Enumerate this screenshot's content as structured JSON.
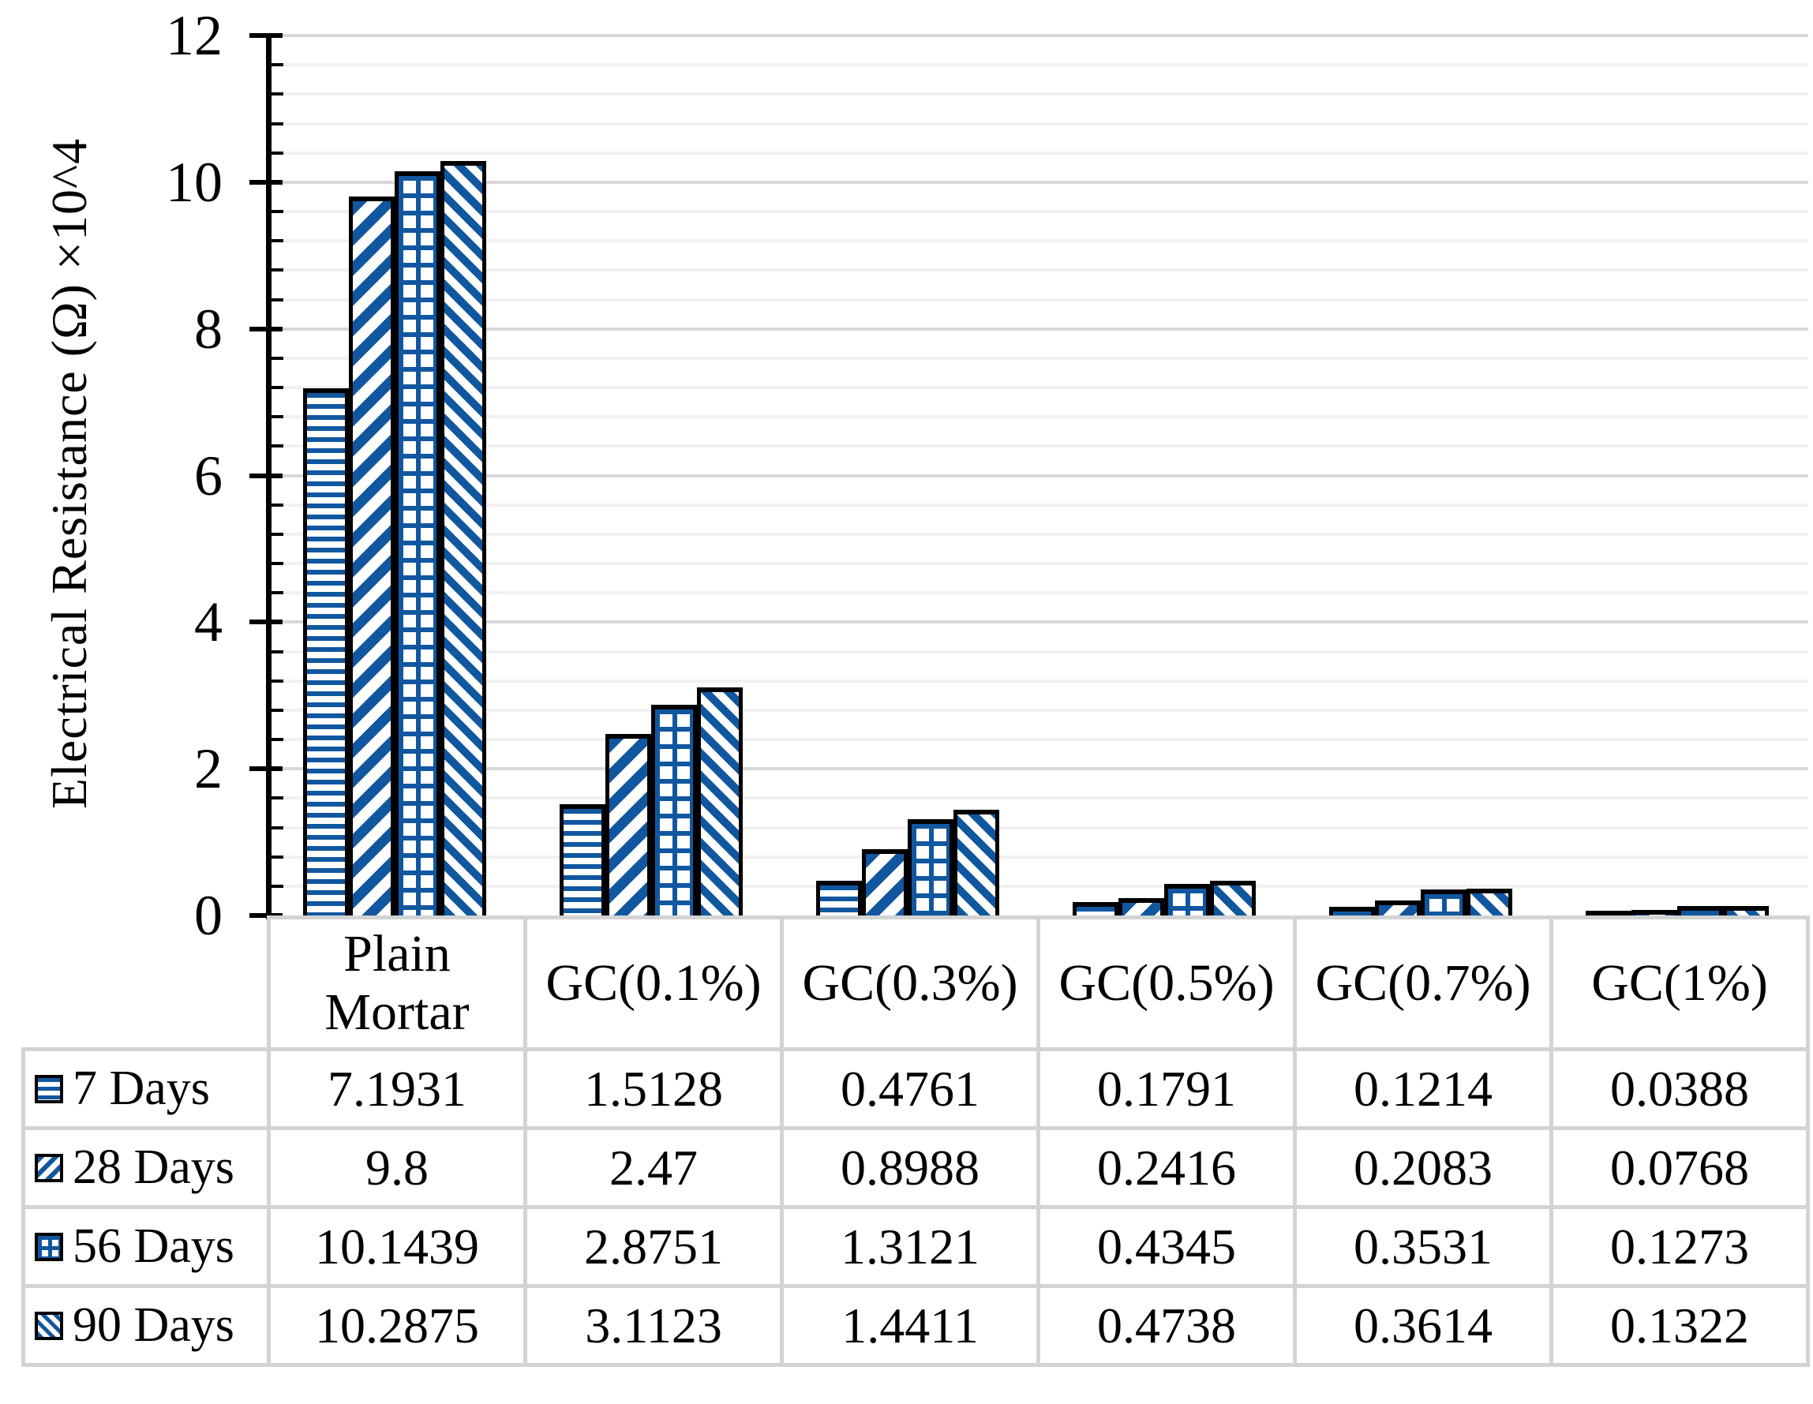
{
  "chart_data": {
    "type": "bar",
    "title": "",
    "ylabel": "Electrical Resistance (Ω) ×10^4",
    "xlabel": "",
    "categories": [
      "Plain Mortar",
      "GC(0.1%)",
      "GC(0.3%)",
      "GC(0.5%)",
      "GC(0.7%)",
      "GC(1%)"
    ],
    "series": [
      {
        "name": "7 Days",
        "pattern": "horizontal-lines",
        "values": [
          7.1931,
          1.5128,
          0.4761,
          0.1791,
          0.1214,
          0.0388
        ]
      },
      {
        "name": "28 Days",
        "pattern": "wide-upward-diagonal",
        "values": [
          9.8,
          2.47,
          0.8988,
          0.2416,
          0.2083,
          0.0768
        ]
      },
      {
        "name": "56 Days",
        "pattern": "grid",
        "values": [
          10.1439,
          2.8751,
          1.3121,
          0.4345,
          0.3531,
          0.1273
        ]
      },
      {
        "name": "90 Days",
        "pattern": "wide-downward-diagonal",
        "values": [
          10.2875,
          3.1123,
          1.4411,
          0.4738,
          0.3614,
          0.1322
        ]
      }
    ],
    "ylim": [
      0,
      12
    ],
    "y_major_unit": 2,
    "y_minor_unit": 0.4,
    "y_tick_labels": [
      "0",
      "2",
      "4",
      "6",
      "8",
      "10",
      "12"
    ],
    "grid": true,
    "legend_position": "data-table-left-column",
    "colors": {
      "bar_fill": "#1157A0",
      "bar_border": "#000000",
      "grid_major": "#D8D8D8",
      "grid_minor": "#F0F0F0",
      "table_border": "#D3D3D3",
      "text": "#000000"
    }
  },
  "table": {
    "corner_label": "",
    "column_headers": [
      "Plain Mortar",
      "GC(0.1%)",
      "GC(0.3%)",
      "GC(0.5%)",
      "GC(0.7%)",
      "GC(1%)"
    ],
    "row_headers": [
      "7 Days",
      "28 Days",
      "56 Days",
      "90 Days"
    ],
    "cells": [
      [
        "7.1931",
        "1.5128",
        "0.4761",
        "0.1791",
        "0.1214",
        "0.0388"
      ],
      [
        "9.8",
        "2.47",
        "0.8988",
        "0.2416",
        "0.2083",
        "0.0768"
      ],
      [
        "10.1439",
        "2.8751",
        "1.3121",
        "0.4345",
        "0.3531",
        "0.1273"
      ],
      [
        "10.2875",
        "3.1123",
        "1.4411",
        "0.4738",
        "0.3614",
        "0.1322"
      ]
    ]
  }
}
